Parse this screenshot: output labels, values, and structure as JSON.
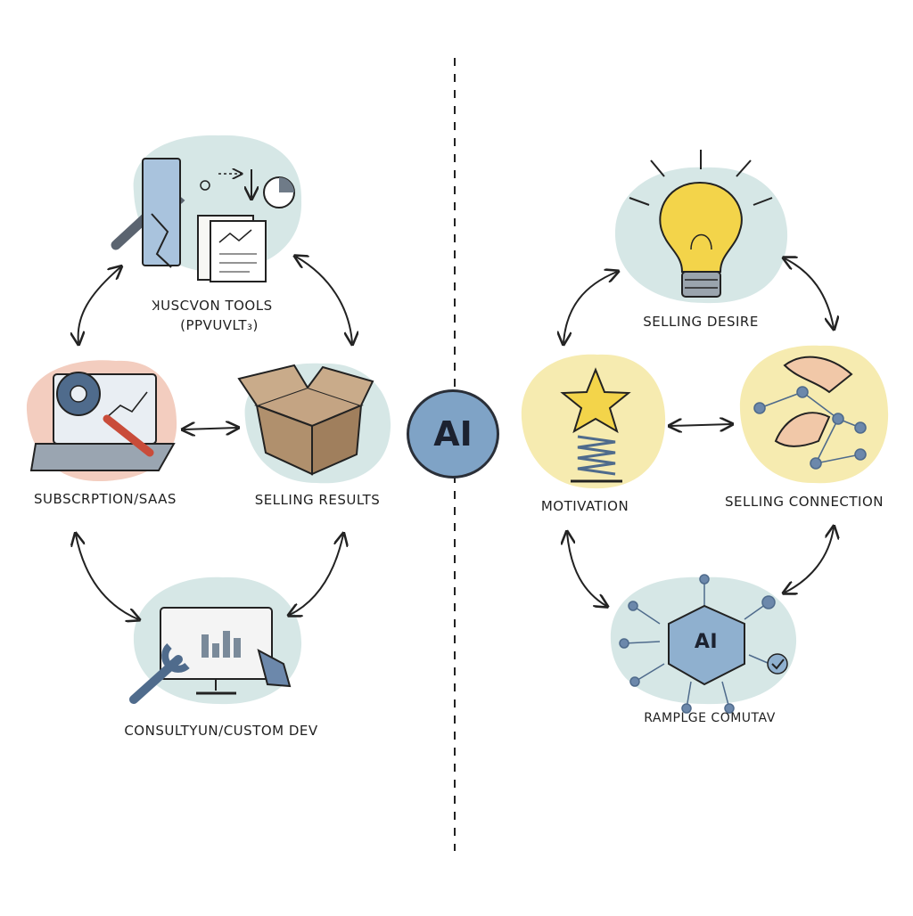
{
  "hub": {
    "label": "AI"
  },
  "left": {
    "nodes": [
      {
        "id": "tools",
        "label": "ꞰUSCVON TOOLS",
        "sublabel": "(PPVUVLT₃)"
      },
      {
        "id": "subscription",
        "label": "SUBSCRPTION/SAAS"
      },
      {
        "id": "results",
        "label": "SELLING RESULTS"
      },
      {
        "id": "consulting",
        "label": "CONSULTYUN/CUSTOM DEV"
      }
    ]
  },
  "right": {
    "nodes": [
      {
        "id": "desire",
        "label": "SELLING DESIRE"
      },
      {
        "id": "motivation",
        "label": "MOTIVATION"
      },
      {
        "id": "connection",
        "label": "SELLING CONNECTION"
      },
      {
        "id": "knowledge",
        "label": "RAMPLGE COMUTAV",
        "badge": "AI"
      }
    ]
  },
  "colors": {
    "teal_blob": "#d6e7e6",
    "pink_blob": "#f3cdbf",
    "yellow_blob": "#f6ebb0",
    "hub_fill": "#7fa3c6",
    "ink": "#222222"
  }
}
